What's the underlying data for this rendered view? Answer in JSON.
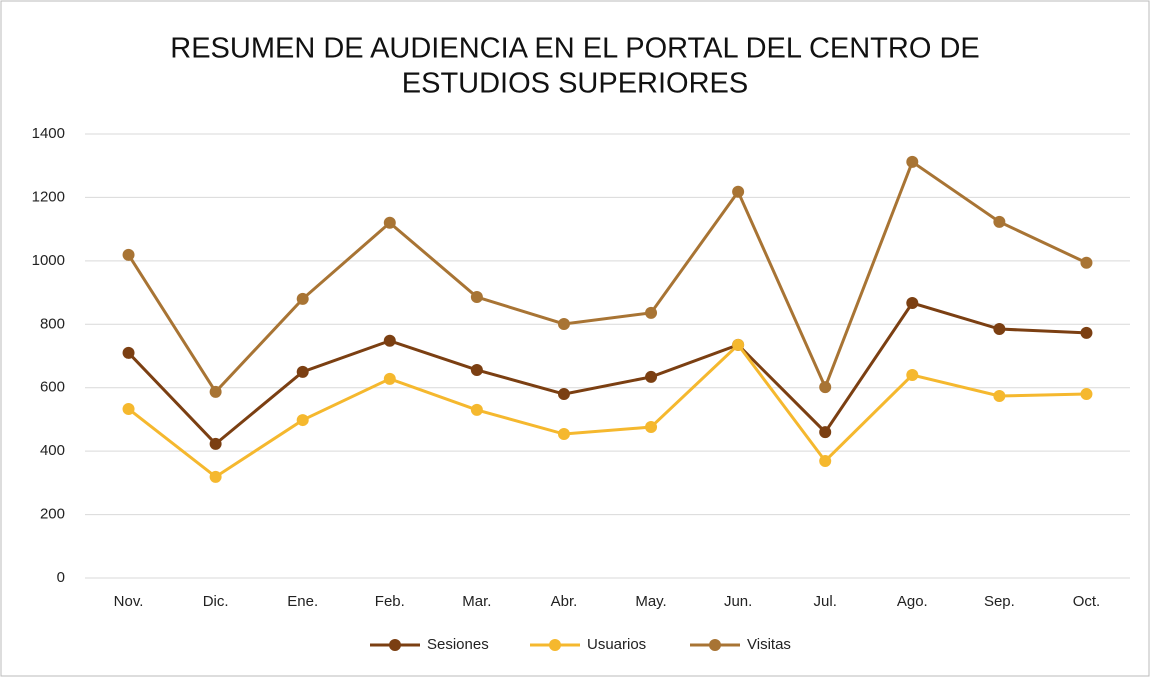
{
  "chart_data": {
    "type": "line",
    "title": [
      "RESUMEN DE AUDIENCIA EN EL PORTAL DEL CENTRO DE",
      "ESTUDIOS SUPERIORES"
    ],
    "categories": [
      "Nov.",
      "Dic.",
      "Ene.",
      "Feb.",
      "Mar.",
      "Abr.",
      "May.",
      "Jun.",
      "Jul.",
      "Ago.",
      "Sep.",
      "Oct."
    ],
    "series": [
      {
        "name": "Sesiones",
        "color": "#7b3f12",
        "values": [
          710,
          423,
          650,
          748,
          656,
          580,
          634,
          735,
          460,
          867,
          785,
          773
        ]
      },
      {
        "name": "Usuarios",
        "color": "#f5b82e",
        "values": [
          533,
          319,
          498,
          628,
          530,
          454,
          476,
          735,
          369,
          640,
          574,
          580
        ]
      },
      {
        "name": "Visitas",
        "color": "#a87434",
        "values": [
          1019,
          587,
          880,
          1120,
          886,
          801,
          836,
          1218,
          602,
          1312,
          1123,
          994
        ]
      }
    ],
    "ylim": [
      0,
      1400
    ],
    "yticks": [
      0,
      200,
      400,
      600,
      800,
      1000,
      1200,
      1400
    ],
    "grid": true,
    "legend": "bottom"
  }
}
